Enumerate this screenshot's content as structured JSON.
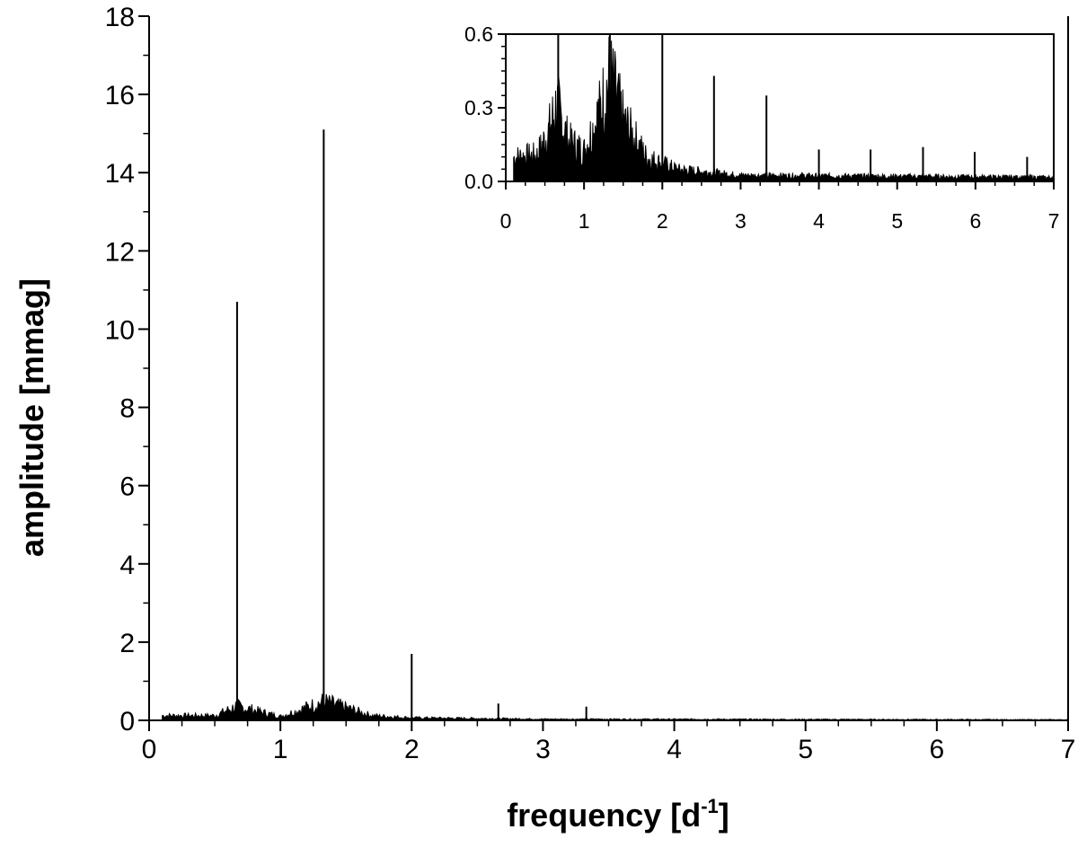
{
  "chart_data": [
    {
      "type": "line",
      "xlabel": "frequency [d",
      "xlabel_superscript": "-1",
      "xlabel_suffix": "]",
      "ylabel": "amplitude [mmag]",
      "xlim": [
        0,
        7
      ],
      "ylim": [
        0,
        18
      ],
      "xticks": [
        "0",
        "1",
        "2",
        "3",
        "4",
        "5",
        "6",
        "7"
      ],
      "yticks": [
        "0",
        "2",
        "4",
        "6",
        "8",
        "10",
        "12",
        "14",
        "16",
        "18"
      ],
      "grid": false,
      "peaks": [
        {
          "x": 0.67,
          "y": 10.7
        },
        {
          "x": 1.33,
          "y": 15.1
        },
        {
          "x": 2.0,
          "y": 1.7
        },
        {
          "x": 2.66,
          "y": 0.43
        },
        {
          "x": 3.33,
          "y": 0.35
        }
      ],
      "noise_floor": [
        {
          "x": 0.1,
          "y": 0.15
        },
        {
          "x": 0.5,
          "y": 0.15
        },
        {
          "x": 0.67,
          "y": 0.45
        },
        {
          "x": 1.0,
          "y": 0.12
        },
        {
          "x": 1.33,
          "y": 0.6
        },
        {
          "x": 1.7,
          "y": 0.15
        },
        {
          "x": 2.0,
          "y": 0.08
        },
        {
          "x": 3.0,
          "y": 0.04
        },
        {
          "x": 7.0,
          "y": 0.02
        }
      ]
    },
    {
      "type": "line",
      "inset": true,
      "xlim": [
        0,
        7
      ],
      "ylim": [
        0,
        0.6
      ],
      "xticks": [
        "0",
        "1",
        "2",
        "3",
        "4",
        "5",
        "6",
        "7"
      ],
      "yticks": [
        "0.0",
        "0.3",
        "0.6"
      ],
      "grid": false,
      "peaks": [
        {
          "x": 0.67,
          "y": 0.6
        },
        {
          "x": 1.33,
          "y": 0.6
        },
        {
          "x": 2.0,
          "y": 0.6
        },
        {
          "x": 2.66,
          "y": 0.43
        },
        {
          "x": 3.33,
          "y": 0.35
        },
        {
          "x": 4.0,
          "y": 0.13
        },
        {
          "x": 4.66,
          "y": 0.13
        },
        {
          "x": 5.33,
          "y": 0.14
        },
        {
          "x": 5.99,
          "y": 0.12
        },
        {
          "x": 6.66,
          "y": 0.1
        }
      ],
      "noise_floor": [
        {
          "x": 0.1,
          "y": 0.12
        },
        {
          "x": 0.4,
          "y": 0.13
        },
        {
          "x": 0.55,
          "y": 0.25
        },
        {
          "x": 0.65,
          "y": 0.38
        },
        {
          "x": 0.8,
          "y": 0.2
        },
        {
          "x": 1.0,
          "y": 0.15
        },
        {
          "x": 1.2,
          "y": 0.35
        },
        {
          "x": 1.33,
          "y": 0.52
        },
        {
          "x": 1.5,
          "y": 0.3
        },
        {
          "x": 1.8,
          "y": 0.12
        },
        {
          "x": 2.2,
          "y": 0.06
        },
        {
          "x": 3.0,
          "y": 0.03
        },
        {
          "x": 7.0,
          "y": 0.02
        }
      ]
    }
  ]
}
